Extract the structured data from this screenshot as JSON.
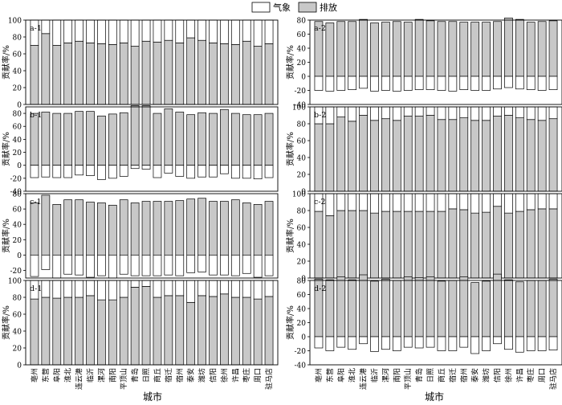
{
  "legend": {
    "items": [
      {
        "label": "气象",
        "color": "#ffffff"
      },
      {
        "label": "排放",
        "color": "#c8c8c8"
      }
    ]
  },
  "xlabel": "城市",
  "ylabel": "贡献率/%",
  "cities": [
    "亳州",
    "东营",
    "阜阳",
    "淮北",
    "连云港",
    "临沂",
    "漯河",
    "南阳",
    "平顶山",
    "青岛",
    "日照",
    "商丘",
    "宿迁",
    "宿州",
    "泰安",
    "潍坊",
    "信阳",
    "徐州",
    "许昌",
    "枣庄",
    "周口",
    "驻马店"
  ],
  "chart_data": [
    {
      "type": "bar",
      "panel": "a-1",
      "ylim": [
        0,
        100
      ],
      "yticks": [
        0,
        20,
        40,
        60,
        80,
        100
      ],
      "series": [
        {
          "name": "排放",
          "values": [
            70,
            84,
            70,
            73,
            75,
            73,
            72,
            71,
            73,
            69,
            75,
            74,
            76,
            73,
            79,
            76,
            73,
            72,
            71,
            75,
            69,
            72
          ]
        },
        {
          "name": "气象",
          "values": [
            30,
            16,
            30,
            27,
            25,
            27,
            28,
            29,
            27,
            31,
            25,
            26,
            24,
            27,
            21,
            24,
            27,
            28,
            29,
            25,
            31,
            28
          ]
        }
      ]
    },
    {
      "type": "bar",
      "panel": "a-2",
      "ylim": [
        -40,
        80
      ],
      "yticks": [
        -40,
        -20,
        0,
        20,
        40,
        60,
        80
      ],
      "series": [
        {
          "name": "排放",
          "values": [
            78,
            76,
            78,
            78,
            81,
            76,
            77,
            78,
            77,
            81,
            79,
            78,
            78,
            77,
            77,
            77,
            78,
            83,
            81,
            77,
            78,
            79
          ]
        },
        {
          "name": "气象",
          "values": [
            -20,
            -21,
            -20,
            -19,
            -17,
            -21,
            -20,
            -21,
            -20,
            -19,
            -19,
            -20,
            -21,
            -19,
            -20,
            -20,
            -18,
            -16,
            -18,
            -19,
            -20,
            -19
          ]
        }
      ]
    },
    {
      "type": "bar",
      "panel": "b-1",
      "ylim": [
        -40,
        90
      ],
      "yticks": [
        -40,
        -20,
        0,
        20,
        40,
        60,
        80
      ],
      "series": [
        {
          "name": "排放",
          "values": [
            80,
            82,
            80,
            80,
            83,
            83,
            76,
            79,
            81,
            92,
            92,
            80,
            87,
            82,
            78,
            81,
            80,
            86,
            80,
            78,
            78,
            80
          ]
        },
        {
          "name": "气象",
          "values": [
            -19,
            -18,
            -19,
            -19,
            -15,
            -16,
            -22,
            -20,
            -17,
            -5,
            -6,
            -19,
            -12,
            -17,
            -20,
            -18,
            -18,
            -13,
            -20,
            -20,
            -21,
            -19
          ]
        }
      ]
    },
    {
      "type": "bar",
      "panel": "b-2",
      "ylim": [
        0,
        100
      ],
      "yticks": [
        0,
        20,
        40,
        60,
        80,
        100
      ],
      "series": [
        {
          "name": "排放",
          "values": [
            80,
            80,
            88,
            83,
            90,
            84,
            86,
            84,
            89,
            89,
            90,
            85,
            85,
            87,
            84,
            84,
            89,
            90,
            87,
            85,
            84,
            86
          ]
        },
        {
          "name": "气象",
          "values": [
            20,
            20,
            12,
            17,
            10,
            16,
            14,
            16,
            11,
            11,
            10,
            15,
            15,
            13,
            16,
            16,
            11,
            10,
            13,
            15,
            16,
            14
          ]
        }
      ]
    },
    {
      "type": "bar",
      "panel": "c-1",
      "ylim": [
        -30,
        80
      ],
      "yticks": [
        -20,
        0,
        20,
        40,
        60,
        80
      ],
      "series": [
        {
          "name": "排放",
          "values": [
            68,
            78,
            66,
            72,
            72,
            69,
            68,
            65,
            72,
            68,
            70,
            70,
            70,
            71,
            73,
            74,
            70,
            70,
            72,
            68,
            66,
            70
          ]
        },
        {
          "name": "气象",
          "values": [
            -28,
            -19,
            -30,
            -25,
            -26,
            -29,
            -27,
            -30,
            -25,
            -27,
            -27,
            -27,
            -26,
            -27,
            -23,
            -22,
            -26,
            -26,
            -27,
            -24,
            -29,
            -27
          ]
        }
      ]
    },
    {
      "type": "bar",
      "panel": "c-2",
      "ylim": [
        0,
        100
      ],
      "yticks": [
        0,
        20,
        40,
        60,
        80,
        100
      ],
      "series": [
        {
          "name": "排放",
          "values": [
            79,
            74,
            80,
            80,
            80,
            77,
            79,
            79,
            79,
            79,
            79,
            79,
            82,
            81,
            77,
            78,
            85,
            77,
            79,
            81,
            82,
            82
          ]
        },
        {
          "name": "气象",
          "values": [
            21,
            26,
            20,
            20,
            20,
            23,
            21,
            21,
            21,
            21,
            21,
            21,
            18,
            19,
            23,
            22,
            15,
            23,
            21,
            19,
            18,
            18
          ]
        }
      ]
    },
    {
      "type": "bar",
      "panel": "d-1",
      "ylim": [
        0,
        100
      ],
      "yticks": [
        0,
        20,
        40,
        60,
        80,
        100
      ],
      "series": [
        {
          "name": "排放",
          "values": [
            78,
            80,
            79,
            80,
            80,
            82,
            77,
            77,
            80,
            92,
            93,
            80,
            82,
            82,
            74,
            82,
            81,
            84,
            80,
            80,
            78,
            81
          ]
        },
        {
          "name": "气象",
          "values": [
            22,
            20,
            21,
            20,
            20,
            18,
            23,
            23,
            20,
            8,
            7,
            20,
            18,
            18,
            26,
            18,
            19,
            16,
            20,
            20,
            22,
            19
          ]
        }
      ]
    },
    {
      "type": "bar",
      "panel": "d-2",
      "ylim": [
        -40,
        80
      ],
      "yticks": [
        -40,
        -20,
        0,
        20,
        40,
        60,
        80
      ],
      "series": [
        {
          "name": "排放",
          "values": [
            82,
            81,
            85,
            81,
            88,
            79,
            82,
            80,
            85,
            84,
            85,
            79,
            80,
            85,
            77,
            79,
            89,
            81,
            78,
            80,
            80,
            82
          ]
        },
        {
          "name": "气象",
          "values": [
            -16,
            -20,
            -15,
            -18,
            -10,
            -21,
            -18,
            -20,
            -15,
            -16,
            -15,
            -20,
            -20,
            -15,
            -24,
            -20,
            -10,
            -18,
            -22,
            -20,
            -20,
            -19
          ]
        }
      ]
    }
  ]
}
